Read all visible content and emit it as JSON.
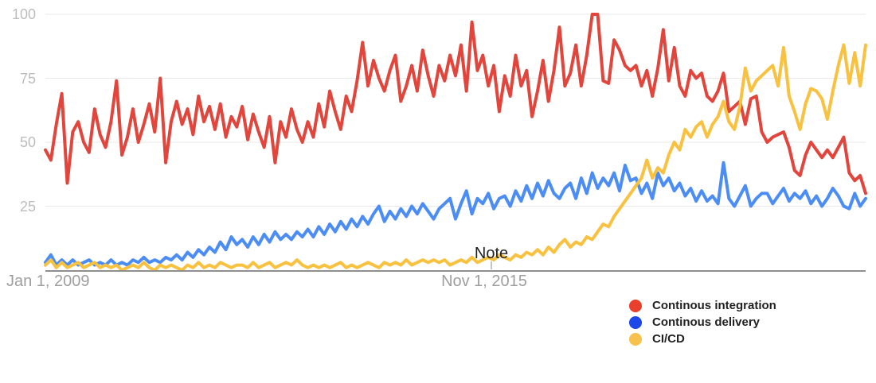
{
  "axes": {
    "y_ticks": [
      "100",
      "75",
      "50",
      "25"
    ],
    "x_ticks": [
      "Jan 1, 2009",
      "Nov 1, 2015"
    ],
    "note_label": "Note"
  },
  "legend": {
    "items": [
      {
        "label": "Continous integration",
        "dot_color": "#e8402c"
      },
      {
        "label": "Continous delivery",
        "dot_color": "#1c46e8"
      },
      {
        "label": "CI/CD",
        "dot_color": "#f6c14c"
      }
    ]
  },
  "chart_data": {
    "type": "line",
    "title": "",
    "xlabel": "",
    "ylabel": "",
    "ylim": [
      0,
      100
    ],
    "grid": true,
    "legend_position": "bottom-right",
    "x_interval": "monthly",
    "x_range": [
      "Jan 2009",
      "Jul 2021"
    ],
    "x_tick_labels": [
      "Jan 1, 2009",
      "Nov 1, 2015"
    ],
    "annotations": [
      {
        "label": "Note",
        "x": "Nov 1, 2015"
      }
    ],
    "series": [
      {
        "name": "Continous integration",
        "color": "#e1453c",
        "values": [
          47,
          43,
          57,
          69,
          34,
          54,
          58,
          50,
          46,
          63,
          53,
          48,
          58,
          74,
          45,
          52,
          63,
          50,
          57,
          65,
          54,
          75,
          42,
          58,
          66,
          57,
          63,
          53,
          68,
          58,
          64,
          55,
          65,
          52,
          60,
          56,
          64,
          51,
          61,
          54,
          48,
          60,
          42,
          58,
          52,
          63,
          55,
          50,
          58,
          52,
          65,
          56,
          70,
          62,
          55,
          68,
          62,
          74,
          89,
          72,
          82,
          75,
          70,
          78,
          84,
          66,
          72,
          80,
          70,
          86,
          76,
          68,
          80,
          74,
          84,
          76,
          88,
          70,
          97,
          78,
          84,
          72,
          80,
          62,
          76,
          68,
          84,
          72,
          78,
          60,
          70,
          82,
          66,
          78,
          95,
          72,
          77,
          88,
          72,
          84,
          100,
          100,
          74,
          73,
          90,
          86,
          80,
          78,
          80,
          72,
          78,
          68,
          79,
          94,
          74,
          87,
          72,
          68,
          78,
          75,
          77,
          68,
          66,
          70,
          77,
          62,
          64,
          66,
          57,
          67,
          68,
          54,
          50,
          52,
          53,
          54,
          48,
          39,
          37,
          45,
          50,
          47,
          44,
          47,
          44,
          48,
          52,
          38,
          35,
          37,
          30
        ]
      },
      {
        "name": "Continous delivery",
        "color": "#4c8df5",
        "values": [
          3,
          6,
          2,
          4,
          2,
          4,
          2,
          3,
          4,
          2,
          3,
          2,
          4,
          2,
          3,
          2,
          4,
          3,
          5,
          3,
          4,
          3,
          5,
          4,
          6,
          4,
          7,
          5,
          8,
          6,
          9,
          7,
          11,
          8,
          13,
          10,
          12,
          9,
          13,
          10,
          14,
          11,
          15,
          12,
          14,
          12,
          15,
          13,
          16,
          13,
          17,
          14,
          18,
          15,
          19,
          16,
          20,
          17,
          21,
          18,
          22,
          25,
          19,
          23,
          20,
          24,
          21,
          25,
          22,
          26,
          23,
          20,
          24,
          26,
          28,
          20,
          26,
          31,
          22,
          28,
          26,
          30,
          24,
          28,
          29,
          25,
          31,
          27,
          33,
          28,
          34,
          29,
          35,
          30,
          28,
          32,
          34,
          28,
          36,
          30,
          38,
          32,
          36,
          33,
          38,
          31,
          41,
          35,
          36,
          30,
          34,
          28,
          38,
          33,
          36,
          31,
          34,
          29,
          32,
          27,
          31,
          27,
          29,
          26,
          42,
          28,
          25,
          29,
          33,
          25,
          28,
          30,
          30,
          26,
          29,
          32,
          27,
          30,
          28,
          31,
          26,
          29,
          25,
          28,
          32,
          29,
          25,
          24,
          30,
          25,
          28
        ]
      },
      {
        "name": "CI/CD",
        "color": "#f8c13f",
        "values": [
          2,
          4,
          1,
          3,
          1,
          2,
          3,
          1,
          2,
          3,
          1,
          2,
          1,
          2,
          0,
          1,
          2,
          1,
          3,
          1,
          0,
          2,
          1,
          2,
          1,
          0,
          2,
          1,
          3,
          1,
          2,
          1,
          3,
          2,
          1,
          2,
          2,
          1,
          3,
          1,
          2,
          3,
          1,
          2,
          3,
          2,
          4,
          2,
          1,
          2,
          1,
          2,
          1,
          2,
          3,
          1,
          2,
          1,
          2,
          3,
          2,
          1,
          3,
          2,
          3,
          2,
          4,
          2,
          3,
          4,
          3,
          4,
          3,
          4,
          2,
          3,
          4,
          3,
          5,
          3,
          4,
          5,
          4,
          6,
          5,
          4,
          6,
          5,
          7,
          6,
          8,
          6,
          9,
          7,
          10,
          12,
          9,
          11,
          10,
          13,
          12,
          15,
          18,
          17,
          21,
          24,
          27,
          30,
          33,
          36,
          43,
          36,
          40,
          38,
          45,
          50,
          47,
          55,
          52,
          56,
          58,
          52,
          57,
          60,
          66,
          58,
          55,
          64,
          79,
          70,
          74,
          76,
          78,
          80,
          72,
          87,
          68,
          62,
          55,
          65,
          71,
          70,
          67,
          59,
          70,
          80,
          88,
          73,
          85,
          72,
          88
        ]
      }
    ]
  }
}
